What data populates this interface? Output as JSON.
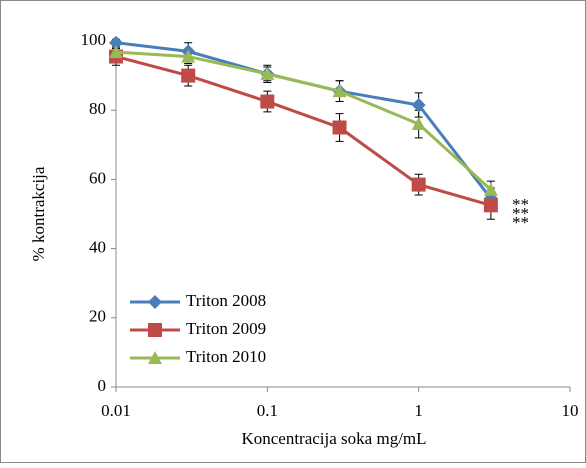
{
  "chart_data": {
    "type": "line",
    "x_label": "Koncentracija soka mg/mL",
    "y_label": "% kontrakcija",
    "x": [
      0.01,
      0.03,
      0.1,
      0.3,
      1,
      3
    ],
    "xscale": "log",
    "xlim": [
      0.01,
      10
    ],
    "xticks": [
      0.01,
      0.1,
      1,
      10
    ],
    "ylim": [
      0,
      100
    ],
    "yticks": [
      0,
      20,
      40,
      60,
      80,
      100
    ],
    "grid": false,
    "legend": "lower left",
    "series": [
      {
        "name": "Triton 2008",
        "color": "#4a7ebb",
        "marker": "diamond",
        "values": [
          99.5,
          97,
          90.5,
          85.5,
          81.5,
          54.5
        ],
        "errors": [
          1,
          2.5,
          2.5,
          3,
          3.5,
          3
        ]
      },
      {
        "name": "Triton 2009",
        "color": "#be4b48",
        "marker": "square",
        "values": [
          95.5,
          90,
          82.5,
          75,
          58.5,
          52.5
        ],
        "errors": [
          2.5,
          3,
          3,
          4,
          3,
          4
        ]
      },
      {
        "name": "Triton 2010",
        "color": "#98b954",
        "marker": "triangle",
        "values": [
          96.8,
          95.5,
          90.5,
          85.5,
          76,
          57
        ],
        "errors": [
          1,
          2,
          2,
          3,
          4,
          2.5
        ]
      }
    ],
    "annotations": [
      "**",
      "**",
      "**"
    ]
  }
}
